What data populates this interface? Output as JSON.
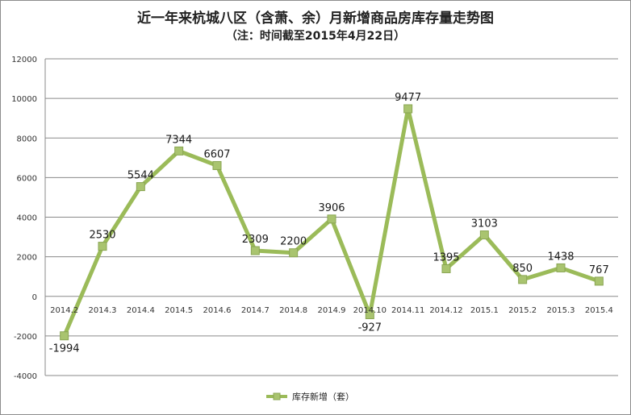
{
  "chart_data": {
    "type": "line",
    "title": "近一年来杭城八区（含萧、余）月新增商品房库存量走势图",
    "subtitle": "（注：时间截至2015年4月22日）",
    "categories": [
      "2014.2",
      "2014.3",
      "2014.4",
      "2014.5",
      "2014.6",
      "2014.7",
      "2014.8",
      "2014.9",
      "2014.10",
      "2014.11",
      "2014.12",
      "2015.1",
      "2015.2",
      "2015.3",
      "2015.4"
    ],
    "series": [
      {
        "name": "库存新增（套）",
        "values": [
          -1994,
          2530,
          5544,
          7344,
          6607,
          2309,
          2200,
          3906,
          -927,
          9477,
          1395,
          3103,
          850,
          1438,
          767
        ]
      }
    ],
    "ylim": [
      -4000,
      12000
    ],
    "yticks": [
      -4000,
      -2000,
      0,
      2000,
      4000,
      6000,
      8000,
      10000,
      12000
    ],
    "grid": true,
    "legend_position": "bottom",
    "color": "#9bbb59",
    "marker_color": "#a9c46f"
  }
}
